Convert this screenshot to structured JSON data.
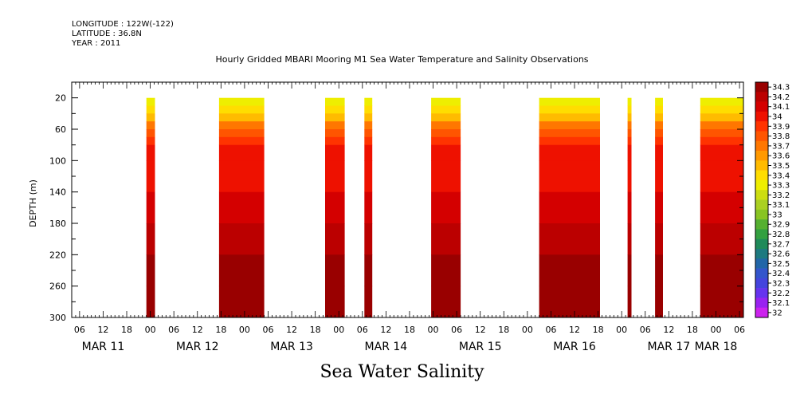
{
  "header": {
    "longitude": "LONGITUDE : 122W(-122)",
    "latitude": "LATITUDE : 36.8N",
    "year": "YEAR : 2011"
  },
  "title": "Hourly Gridded MBARI Mooring M1 Sea Water Temperature and Salinity Observations",
  "bottom_title": "Sea Water Salinity",
  "chart_data": {
    "type": "heatmap",
    "title": "Hourly Gridded MBARI Mooring M1 Sea Water Temperature and Salinity Observations",
    "ylabel": "DEPTH (m)",
    "xlabel": "",
    "x_units": "hours since MAR 11 00",
    "xlim": [
      4,
      175
    ],
    "ylim": [
      300,
      0
    ],
    "y_axis_inverted": true,
    "y_ticks": [
      20,
      60,
      100,
      140,
      180,
      220,
      260,
      300
    ],
    "x_ticks": [
      {
        "hour": 6,
        "label": "06"
      },
      {
        "hour": 12,
        "label": "12"
      },
      {
        "hour": 18,
        "label": "18"
      },
      {
        "hour": 24,
        "label": "00"
      },
      {
        "hour": 30,
        "label": "06"
      },
      {
        "hour": 36,
        "label": "12"
      },
      {
        "hour": 42,
        "label": "18"
      },
      {
        "hour": 48,
        "label": "00"
      },
      {
        "hour": 54,
        "label": "06"
      },
      {
        "hour": 60,
        "label": "12"
      },
      {
        "hour": 66,
        "label": "18"
      },
      {
        "hour": 72,
        "label": "00"
      },
      {
        "hour": 78,
        "label": "06"
      },
      {
        "hour": 84,
        "label": "12"
      },
      {
        "hour": 90,
        "label": "18"
      },
      {
        "hour": 96,
        "label": "00"
      },
      {
        "hour": 102,
        "label": "06"
      },
      {
        "hour": 108,
        "label": "12"
      },
      {
        "hour": 114,
        "label": "18"
      },
      {
        "hour": 120,
        "label": "00"
      },
      {
        "hour": 126,
        "label": "06"
      },
      {
        "hour": 132,
        "label": "12"
      },
      {
        "hour": 138,
        "label": "18"
      },
      {
        "hour": 144,
        "label": "00"
      },
      {
        "hour": 150,
        "label": "06"
      },
      {
        "hour": 156,
        "label": "12"
      },
      {
        "hour": 162,
        "label": "18"
      },
      {
        "hour": 168,
        "label": "00"
      },
      {
        "hour": 174,
        "label": "06"
      }
    ],
    "day_labels": [
      {
        "hour": 12,
        "label": "MAR 11"
      },
      {
        "hour": 36,
        "label": "MAR 12"
      },
      {
        "hour": 60,
        "label": "MAR 13"
      },
      {
        "hour": 84,
        "label": "MAR 14"
      },
      {
        "hour": 108,
        "label": "MAR 15"
      },
      {
        "hour": 132,
        "label": "MAR 16"
      },
      {
        "hour": 156,
        "label": "MAR 17"
      },
      {
        "hour": 168,
        "label": "MAR 18"
      }
    ],
    "colorbar": {
      "levels": [
        "34.3",
        "34.2",
        "34.1",
        "34",
        "33.9",
        "33.8",
        "33.7",
        "33.6",
        "33.5",
        "33.4",
        "33.3",
        "33.2",
        "33.1",
        "33",
        "32.9",
        "32.8",
        "32.7",
        "32.6",
        "32.5",
        "32.4",
        "32.3",
        "32.2",
        "32.1",
        "32"
      ],
      "colors": [
        "#990000",
        "#bb0000",
        "#d40000",
        "#ee1100",
        "#ff3300",
        "#ff5500",
        "#ff7700",
        "#ff9900",
        "#ffbb00",
        "#ffdd00",
        "#eeee00",
        "#ccdd11",
        "#aad022",
        "#88c422",
        "#55b030",
        "#33a040",
        "#1f8a5a",
        "#1e7a80",
        "#2266a8",
        "#3355cc",
        "#4444dd",
        "#6633ee",
        "#9922f0",
        "#cc22ee"
      ]
    },
    "data_segments": [
      {
        "start_hour": 23,
        "end_hour": 25.2
      },
      {
        "start_hour": 41.5,
        "end_hour": 53
      },
      {
        "start_hour": 68.5,
        "end_hour": 73.5
      },
      {
        "start_hour": 78.5,
        "end_hour": 80.5
      },
      {
        "start_hour": 95.5,
        "end_hour": 103
      },
      {
        "start_hour": 123,
        "end_hour": 138.5
      },
      {
        "start_hour": 145.5,
        "end_hour": 146.5
      },
      {
        "start_hour": 152.5,
        "end_hour": 154.5
      },
      {
        "start_hour": 164,
        "end_hour": 175
      }
    ],
    "salinity_profile": [
      {
        "depth": 20,
        "salinity": 33.3
      },
      {
        "depth": 30,
        "salinity": 33.4
      },
      {
        "depth": 40,
        "salinity": 33.5
      },
      {
        "depth": 50,
        "salinity": 33.7
      },
      {
        "depth": 60,
        "salinity": 33.8
      },
      {
        "depth": 70,
        "salinity": 33.9
      },
      {
        "depth": 80,
        "salinity": 34.0
      },
      {
        "depth": 100,
        "salinity": 34.05
      },
      {
        "depth": 140,
        "salinity": 34.15
      },
      {
        "depth": 180,
        "salinity": 34.2
      },
      {
        "depth": 220,
        "salinity": 34.25
      },
      {
        "depth": 260,
        "salinity": 34.3
      },
      {
        "depth": 300,
        "salinity": 34.2
      }
    ]
  }
}
